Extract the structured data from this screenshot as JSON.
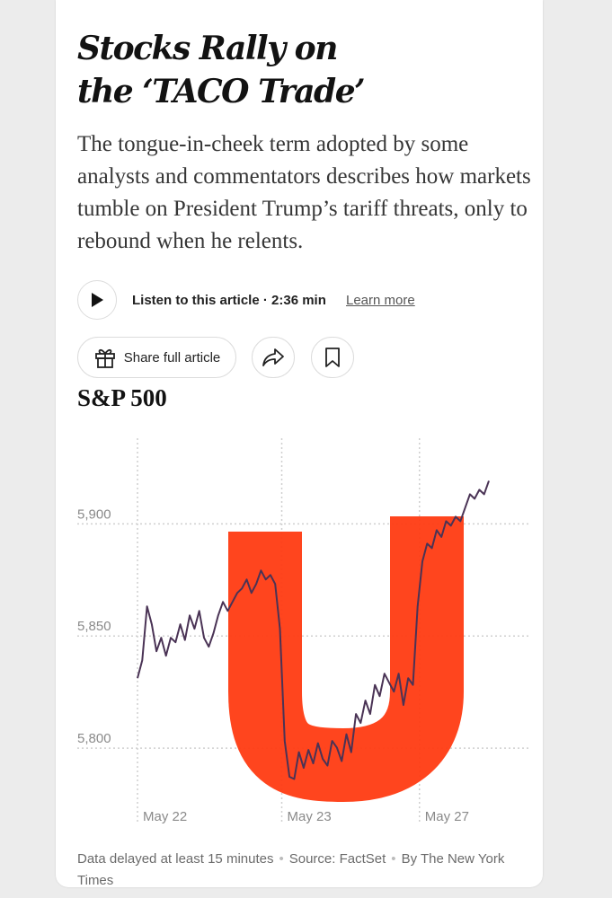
{
  "article": {
    "headline_line1": "Stocks Rally on",
    "headline_line2": "the ‘TACO Trade’",
    "dek": "The tongue-in-cheek term adopted by some analysts and commentators describes how markets tumble on President Trump’s tariff threats, only to rebound when he relents."
  },
  "audio": {
    "play_icon": "play-icon",
    "listen_label": "Listen to this article · 2:36 min",
    "learn_more": "Learn more"
  },
  "actions": {
    "share_label": "Share full article",
    "gift_icon": "gift-icon",
    "forward_icon": "share-arrow-icon",
    "bookmark_icon": "bookmark-icon"
  },
  "chart_title": "S&P 500",
  "chart_data": {
    "type": "line",
    "title": "S&P 500",
    "y_ticks": [
      "5,900",
      "5,850",
      "5,800"
    ],
    "y_tick_values": [
      5900,
      5850,
      5800
    ],
    "ylim": [
      5770,
      5935
    ],
    "x_ticks": [
      "May 22",
      "May 23",
      "May 27"
    ],
    "grid": true,
    "annotation": "red hand-drawn U shape overlaid on the dip and rebound",
    "line_color": "#4a3355",
    "highlight_color": "#ff3b12",
    "series": [
      {
        "values": [
          [
            0,
            5828
          ],
          [
            1,
            5836
          ],
          [
            2,
            5860
          ],
          [
            3,
            5852
          ],
          [
            4,
            5840
          ],
          [
            5,
            5846
          ],
          [
            6,
            5838
          ],
          [
            7,
            5846
          ],
          [
            8,
            5844
          ],
          [
            9,
            5852
          ],
          [
            10,
            5845
          ],
          [
            11,
            5856
          ],
          [
            12,
            5850
          ],
          [
            13,
            5858
          ],
          [
            14,
            5846
          ],
          [
            15,
            5842
          ],
          [
            16,
            5848
          ],
          [
            17,
            5856
          ],
          [
            18,
            5862
          ],
          [
            19,
            5858
          ],
          [
            20,
            5862
          ],
          [
            21,
            5866
          ],
          [
            22,
            5868
          ],
          [
            23,
            5872
          ],
          [
            24,
            5866
          ],
          [
            25,
            5870
          ],
          [
            26,
            5876
          ],
          [
            27,
            5872
          ],
          [
            28,
            5874
          ],
          [
            29,
            5870
          ],
          [
            30,
            5850
          ],
          [
            31,
            5800
          ],
          [
            32,
            5784
          ],
          [
            33,
            5783
          ],
          [
            34,
            5795
          ],
          [
            35,
            5788
          ],
          [
            36,
            5796
          ],
          [
            37,
            5790
          ],
          [
            38,
            5799
          ],
          [
            39,
            5792
          ],
          [
            40,
            5789
          ],
          [
            41,
            5800
          ],
          [
            42,
            5797
          ],
          [
            43,
            5791
          ],
          [
            44,
            5803
          ],
          [
            45,
            5795
          ],
          [
            46,
            5812
          ],
          [
            47,
            5808
          ],
          [
            48,
            5818
          ],
          [
            49,
            5812
          ],
          [
            50,
            5825
          ],
          [
            51,
            5820
          ],
          [
            52,
            5830
          ],
          [
            53,
            5826
          ],
          [
            54,
            5822
          ],
          [
            55,
            5830
          ],
          [
            56,
            5816
          ],
          [
            57,
            5828
          ],
          [
            58,
            5825
          ],
          [
            59,
            5860
          ],
          [
            60,
            5880
          ],
          [
            61,
            5888
          ],
          [
            62,
            5886
          ],
          [
            63,
            5894
          ],
          [
            64,
            5891
          ],
          [
            65,
            5898
          ],
          [
            66,
            5896
          ],
          [
            67,
            5900
          ],
          [
            68,
            5898
          ],
          [
            69,
            5904
          ],
          [
            70,
            5910
          ],
          [
            71,
            5908
          ],
          [
            72,
            5912
          ],
          [
            73,
            5910
          ],
          [
            74,
            5916
          ]
        ]
      }
    ]
  },
  "footer": {
    "delay": "Data delayed at least 15 minutes",
    "source": "Source: FactSet",
    "credit": "By The New York Times"
  }
}
